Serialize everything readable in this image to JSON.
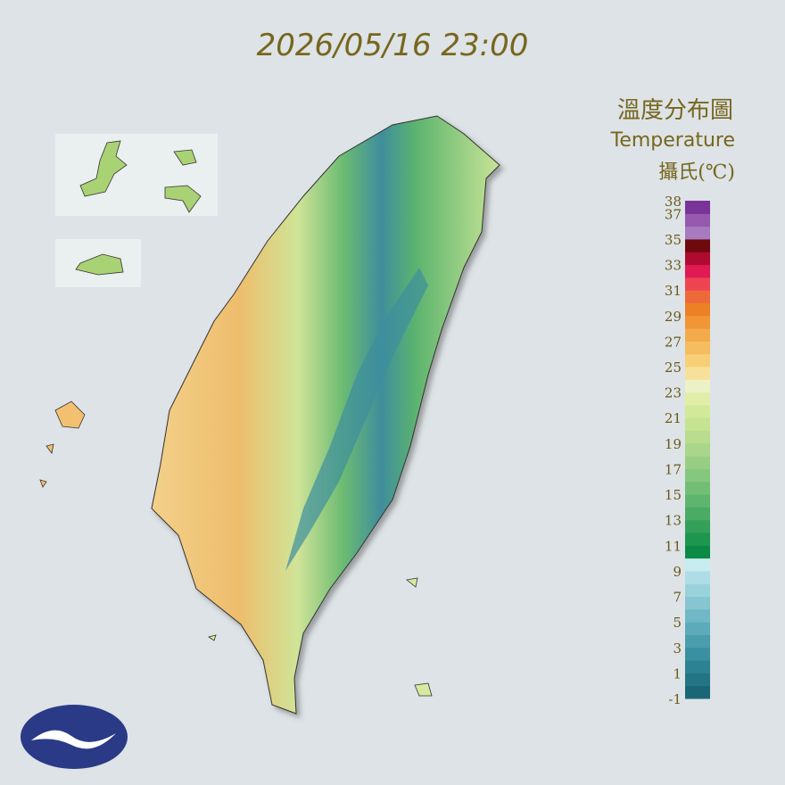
{
  "title": "2026/05/16 23:00",
  "legend": {
    "title": "溫度分布圖",
    "subtitle": "Temperature",
    "unit": "攝氏(℃)",
    "ticks": [
      38,
      37,
      35,
      33,
      31,
      29,
      27,
      25,
      23,
      21,
      19,
      17,
      15,
      13,
      11,
      9,
      7,
      5,
      3,
      1,
      -1
    ],
    "bins": [
      -1,
      0,
      1,
      2,
      3,
      4,
      5,
      6,
      7,
      8,
      9,
      10,
      11,
      12,
      13,
      14,
      15,
      16,
      17,
      18,
      19,
      20,
      21,
      22,
      23,
      24,
      25,
      26,
      27,
      28,
      29,
      30,
      31,
      32,
      33,
      34,
      35,
      36,
      37,
      38
    ],
    "colors": [
      "#1b6676",
      "#237484",
      "#2d8292",
      "#3a90a0",
      "#4a9dad",
      "#5caaba",
      "#70b8c6",
      "#86c5d1",
      "#9ad2dc",
      "#afdde5",
      "#c6ecf0",
      "#0b8a46",
      "#1f9650",
      "#34a05a",
      "#4aab64",
      "#5eb56e",
      "#72be76",
      "#86c77e",
      "#98ce84",
      "#a9d68a",
      "#b8dd8e",
      "#c6e392",
      "#d3e99a",
      "#e0eea8",
      "#ecf2c6",
      "#f8e09a",
      "#f6cf78",
      "#f5bd60",
      "#f3aa4a",
      "#f09636",
      "#ec8024",
      "#ec6a3a",
      "#ee4452",
      "#e01a52",
      "#b00a30",
      "#6e0a0e",
      "#a67bc0",
      "#9659ae",
      "#7a3398"
    ]
  }
}
